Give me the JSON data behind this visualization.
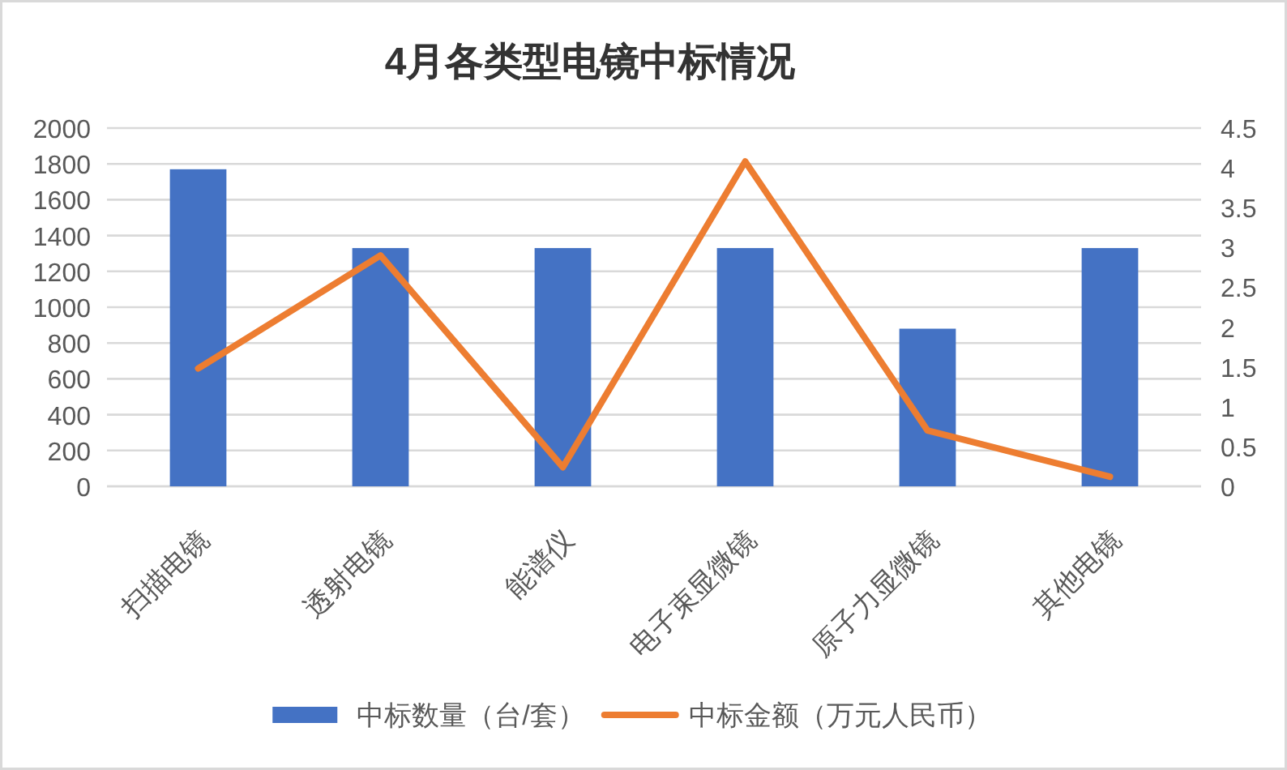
{
  "chart_data": {
    "type": "bar",
    "title": "4月各类型电镜中标情况",
    "categories": [
      "扫描电镜",
      "透射电镜",
      "能谱仪",
      "电子束显微镜",
      "原子力显微镜",
      "其他电镜"
    ],
    "series": [
      {
        "name": "中标数量（台/套）",
        "color": "#4472c4",
        "values": [
          1770,
          1330,
          1330,
          1330,
          880,
          1330
        ]
      },
      {
        "name": "中标金额（万元人民币）",
        "type": "line",
        "axis": "y2",
        "color": "#ed7d31",
        "values": [
          1.48,
          2.9,
          0.24,
          4.08,
          0.7,
          0.12
        ]
      }
    ],
    "ylim": [
      0,
      2000
    ],
    "yticks": [
      0,
      200,
      400,
      600,
      800,
      1000,
      1200,
      1400,
      1600,
      1800,
      2000
    ],
    "y2lim": [
      0,
      4.5
    ],
    "y2ticks": [
      0,
      0.5,
      1,
      1.5,
      2,
      2.5,
      3,
      3.5,
      4,
      4.5
    ],
    "grid": "y",
    "legend": "bottom"
  }
}
